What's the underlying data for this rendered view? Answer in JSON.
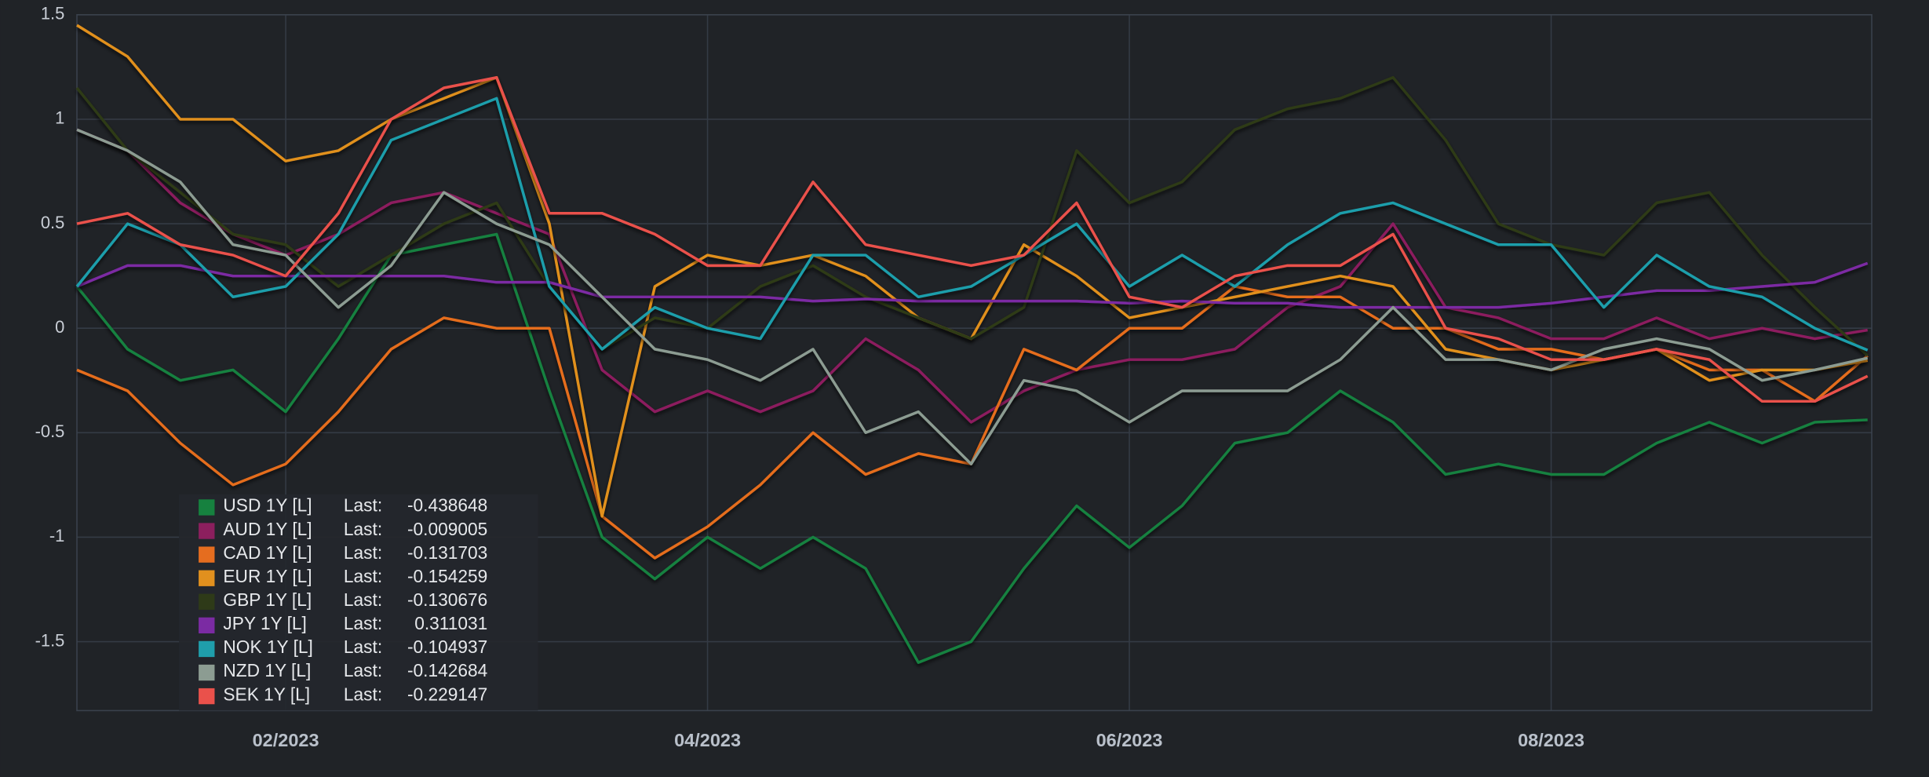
{
  "chart_data": {
    "type": "line",
    "x": [
      1.01,
      1.25,
      1.5,
      1.75,
      2,
      2.25,
      2.5,
      2.75,
      3,
      3.25,
      3.5,
      3.75,
      4,
      4.25,
      4.5,
      4.75,
      5,
      5.25,
      5.5,
      5.75,
      6,
      6.25,
      6.5,
      6.75,
      7,
      7.25,
      7.5,
      7.75,
      8,
      8.25,
      8.5,
      8.75,
      9,
      9.25,
      9.5
    ],
    "xlim": [
      1.01,
      9.52
    ],
    "xticks": [
      {
        "value": 2,
        "label": "02/2023"
      },
      {
        "value": 4,
        "label": "04/2023"
      },
      {
        "value": 6,
        "label": "06/2023"
      },
      {
        "value": 8,
        "label": "08/2023"
      }
    ],
    "ylim": [
      -1.83,
      1.5
    ],
    "yticks": [
      -1.5,
      -1,
      -0.5,
      0,
      0.5,
      1,
      1.5
    ],
    "grid": true,
    "legend_position": "lower-left",
    "last_label": "Last:",
    "series": [
      {
        "name": "USD 1Y [L]",
        "color": "#16813f",
        "values": [
          0.2,
          -0.1,
          -0.25,
          -0.2,
          -0.4,
          -0.05,
          0.35,
          0.4,
          0.45,
          -0.3,
          -1.0,
          -1.2,
          -1.0,
          -1.15,
          -1.0,
          -1.15,
          -1.6,
          -1.5,
          -1.15,
          -0.85,
          -1.05,
          -0.85,
          -0.55,
          -0.5,
          -0.3,
          -0.45,
          -0.7,
          -0.65,
          -0.7,
          -0.7,
          -0.55,
          -0.45,
          -0.55,
          -0.45,
          -0.438648
        ]
      },
      {
        "name": "AUD 1Y [L]",
        "color": "#8c1f5e",
        "values": [
          0.95,
          0.85,
          0.6,
          0.45,
          0.35,
          0.45,
          0.6,
          0.65,
          0.55,
          0.45,
          -0.2,
          -0.4,
          -0.3,
          -0.4,
          -0.3,
          -0.05,
          -0.2,
          -0.45,
          -0.3,
          -0.2,
          -0.15,
          -0.15,
          -0.1,
          0.1,
          0.2,
          0.5,
          0.1,
          0.05,
          -0.05,
          -0.05,
          0.05,
          -0.05,
          0.0,
          -0.05,
          -0.009005
        ]
      },
      {
        "name": "CAD 1Y [L]",
        "color": "#e56d1f",
        "values": [
          -0.2,
          -0.3,
          -0.55,
          -0.75,
          -0.65,
          -0.4,
          -0.1,
          0.05,
          0.0,
          0.0,
          -0.9,
          -1.1,
          -0.95,
          -0.75,
          -0.5,
          -0.7,
          -0.6,
          -0.65,
          -0.1,
          -0.2,
          0.0,
          0.0,
          0.2,
          0.15,
          0.15,
          0.0,
          0.0,
          -0.1,
          -0.1,
          -0.15,
          -0.1,
          -0.2,
          -0.2,
          -0.35,
          -0.131703
        ]
      },
      {
        "name": "EUR 1Y [L]",
        "color": "#e1901e",
        "values": [
          1.45,
          1.3,
          1.0,
          1.0,
          0.8,
          0.85,
          1.0,
          1.1,
          1.2,
          0.5,
          -0.9,
          0.2,
          0.35,
          0.3,
          0.35,
          0.25,
          0.05,
          -0.05,
          0.4,
          0.25,
          0.05,
          0.1,
          0.15,
          0.2,
          0.25,
          0.2,
          -0.1,
          -0.15,
          -0.2,
          -0.15,
          -0.1,
          -0.25,
          -0.2,
          -0.2,
          -0.154259
        ]
      },
      {
        "name": "GBP 1Y [L]",
        "color": "#2e3a18",
        "values": [
          1.15,
          0.85,
          0.65,
          0.45,
          0.4,
          0.2,
          0.35,
          0.5,
          0.6,
          0.2,
          -0.1,
          0.05,
          0.0,
          0.2,
          0.3,
          0.15,
          0.05,
          -0.05,
          0.1,
          0.85,
          0.6,
          0.7,
          0.95,
          1.05,
          1.1,
          1.2,
          0.9,
          0.5,
          0.4,
          0.35,
          0.6,
          0.65,
          0.35,
          0.1,
          -0.130676
        ]
      },
      {
        "name": "JPY 1Y [L]",
        "color": "#7b2ba3",
        "values": [
          0.2,
          0.3,
          0.3,
          0.25,
          0.25,
          0.25,
          0.25,
          0.25,
          0.22,
          0.22,
          0.15,
          0.15,
          0.15,
          0.15,
          0.13,
          0.14,
          0.13,
          0.13,
          0.13,
          0.13,
          0.12,
          0.13,
          0.12,
          0.12,
          0.1,
          0.1,
          0.1,
          0.1,
          0.12,
          0.15,
          0.18,
          0.18,
          0.2,
          0.22,
          0.311031
        ]
      },
      {
        "name": "NOK 1Y [L]",
        "color": "#1f9eab",
        "values": [
          0.2,
          0.5,
          0.4,
          0.15,
          0.2,
          0.45,
          0.9,
          1.0,
          1.1,
          0.2,
          -0.1,
          0.1,
          0.0,
          -0.05,
          0.35,
          0.35,
          0.15,
          0.2,
          0.35,
          0.5,
          0.2,
          0.35,
          0.2,
          0.4,
          0.55,
          0.6,
          0.5,
          0.4,
          0.4,
          0.1,
          0.35,
          0.2,
          0.15,
          0.0,
          -0.104937
        ]
      },
      {
        "name": "NZD 1Y [L]",
        "color": "#8c9c92",
        "values": [
          0.95,
          0.85,
          0.7,
          0.4,
          0.35,
          0.1,
          0.3,
          0.65,
          0.5,
          0.4,
          0.15,
          -0.1,
          -0.15,
          -0.25,
          -0.1,
          -0.5,
          -0.4,
          -0.65,
          -0.25,
          -0.3,
          -0.45,
          -0.3,
          -0.3,
          -0.3,
          -0.15,
          0.1,
          -0.15,
          -0.15,
          -0.2,
          -0.1,
          -0.05,
          -0.1,
          -0.25,
          -0.2,
          -0.142684
        ]
      },
      {
        "name": "SEK 1Y [L]",
        "color": "#ea514b",
        "values": [
          0.5,
          0.55,
          0.4,
          0.35,
          0.25,
          0.55,
          1.0,
          1.15,
          1.2,
          0.55,
          0.55,
          0.45,
          0.3,
          0.3,
          0.7,
          0.4,
          0.35,
          0.3,
          0.35,
          0.6,
          0.15,
          0.1,
          0.25,
          0.3,
          0.3,
          0.45,
          0.0,
          -0.05,
          -0.15,
          -0.15,
          -0.1,
          -0.15,
          -0.35,
          -0.35,
          -0.229147
        ]
      }
    ]
  }
}
